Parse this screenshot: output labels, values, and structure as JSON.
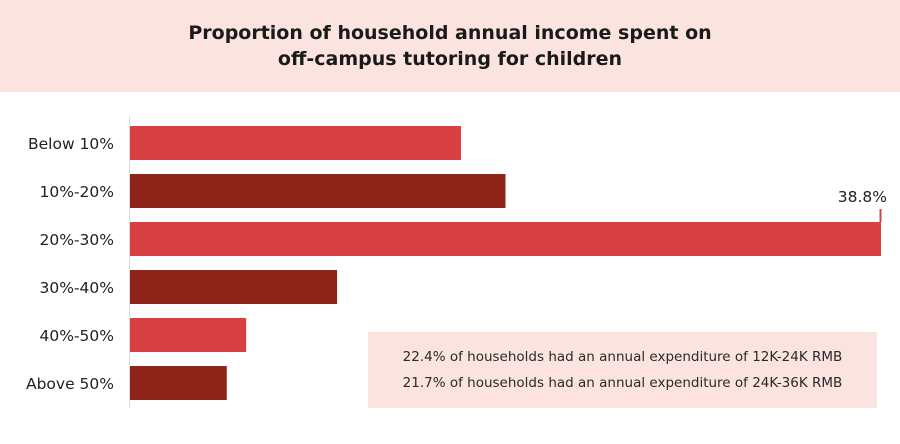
{
  "colors": {
    "header_bg": "#fbe3e0",
    "bar_light": "#d94044",
    "bar_dark": "#8e241a",
    "note_bg": "#fbe3e0"
  },
  "chart_data": {
    "type": "bar",
    "orientation": "horizontal",
    "title_lines": [
      "Proportion of household annual income spent on",
      "off-campus tutoring for children"
    ],
    "categories": [
      "Below 10%",
      "10%-20%",
      "20%-30%",
      "30%-40%",
      "40%-50%",
      "Above 50%"
    ],
    "values": [
      17.1,
      19.4,
      38.8,
      10.7,
      6.0,
      5.0
    ],
    "value_labels": [
      null,
      null,
      "38.8%",
      null,
      null,
      null
    ],
    "bar_colors": [
      "#d94044",
      "#8e241a",
      "#d94044",
      "#8e241a",
      "#d94044",
      "#8e241a"
    ],
    "xlim": [
      0,
      38.8
    ],
    "grid": false,
    "legend": "none",
    "annotations": [
      "22.4% of households had an annual expenditure of 12K-24K RMB",
      "21.7% of households had an annual expenditure of 24K-36K RMB"
    ]
  }
}
